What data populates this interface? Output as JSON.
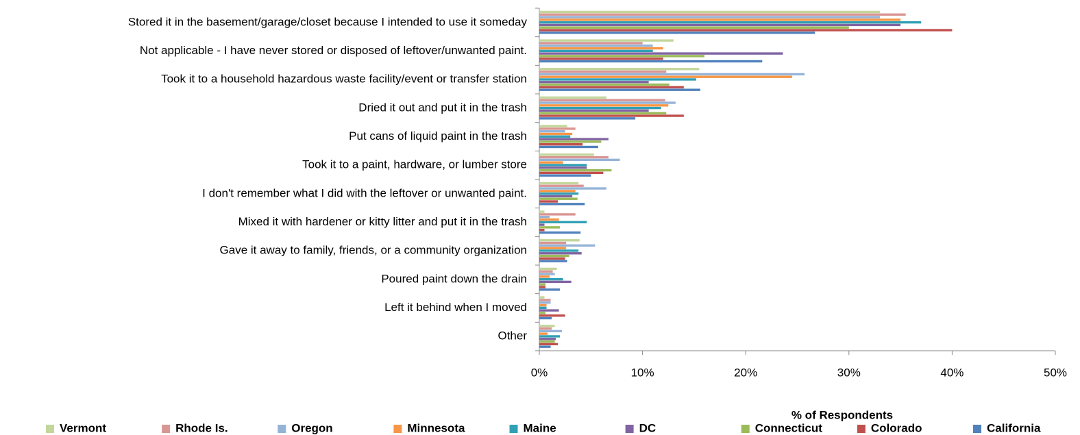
{
  "chart_data": {
    "type": "bar",
    "orientation": "horizontal",
    "x_label": "% of Respondents",
    "categories": [
      "Stored it in the basement/garage/closet because I intended to use it someday",
      "Not applicable - I have never stored or disposed of leftover/unwanted paint.",
      "Took it to a household hazardous waste facility/event or transfer station",
      "Dried it out and put it in the trash",
      "Put cans of liquid paint in the trash",
      "Took it to a paint, hardware, or lumber store",
      "I don't remember what I did with the leftover or unwanted paint.",
      "Mixed it with hardener or kitty litter and put it in the trash",
      "Gave it away to family, friends, or a community organization",
      "Poured paint down the drain",
      "Left it behind when I moved",
      "Other"
    ],
    "series": [
      {
        "name": "Vermont",
        "color": "#c3d69b",
        "values": [
          33,
          13,
          15.5,
          6.5,
          2.7,
          5.3,
          3.8,
          0.5,
          3.9,
          1.7,
          0.5,
          1.5
        ]
      },
      {
        "name": "Rhode Is.",
        "color": "#d99694",
        "values": [
          35.5,
          10,
          12.3,
          12.2,
          3.5,
          6.7,
          4.3,
          3.5,
          2.6,
          1.3,
          1.1,
          1.2
        ]
      },
      {
        "name": "Oregon",
        "color": "#95b3d7",
        "values": [
          33,
          11,
          25.7,
          13.2,
          2.5,
          7.8,
          6.5,
          1,
          5.4,
          1.5,
          1.1,
          2.2
        ]
      },
      {
        "name": "Minnesota",
        "color": "#f79646",
        "values": [
          35,
          12,
          24.5,
          12.5,
          3.2,
          2.3,
          3.5,
          1.9,
          2.6,
          1,
          0.7,
          0.8
        ]
      },
      {
        "name": "Maine",
        "color": "#31a0b5",
        "values": [
          37,
          11,
          15.2,
          11.8,
          3,
          4.6,
          3.8,
          4.6,
          3.8,
          2.3,
          0.7,
          2
        ]
      },
      {
        "name": "DC",
        "color": "#8064a2",
        "values": [
          35,
          23.6,
          10.6,
          10.6,
          6.7,
          4.6,
          3.2,
          0.5,
          4.1,
          3.1,
          1.9,
          1.6
        ]
      },
      {
        "name": "Connecticut",
        "color": "#9bbb59",
        "values": [
          30,
          16,
          12.6,
          12.3,
          6,
          7,
          3.7,
          2,
          2.9,
          0.6,
          0.6,
          1.5
        ]
      },
      {
        "name": "Colorado",
        "color": "#c0504d",
        "values": [
          40,
          12,
          14,
          14,
          4.2,
          6.2,
          1.8,
          0.5,
          2.5,
          0.6,
          2.5,
          1.8
        ]
      },
      {
        "name": "California",
        "color": "#4f81bd",
        "values": [
          26.7,
          21.6,
          15.6,
          9.3,
          5.7,
          5,
          4.4,
          4,
          2.7,
          2,
          1.2,
          1.1
        ]
      }
    ],
    "xlim": [
      0,
      50
    ],
    "xticks": [
      {
        "value": 0,
        "label": "0%"
      },
      {
        "value": 10,
        "label": "10%"
      },
      {
        "value": 20,
        "label": "20%"
      },
      {
        "value": 30,
        "label": "30%"
      },
      {
        "value": 40,
        "label": "40%"
      },
      {
        "value": 50,
        "label": "50%"
      }
    ],
    "legend": "bottom",
    "grid": false
  }
}
